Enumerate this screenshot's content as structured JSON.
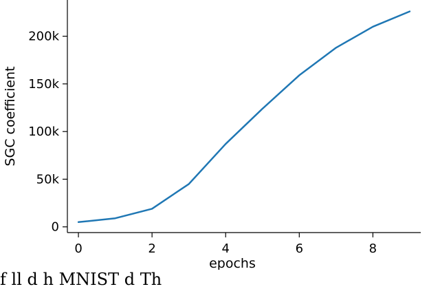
{
  "chart_data": {
    "type": "line",
    "title": "",
    "xlabel": "epochs",
    "ylabel": "SGC coefficient",
    "x": [
      0,
      1,
      2,
      3,
      4,
      5,
      6,
      7,
      8,
      9
    ],
    "series": [
      {
        "values": [
          5000,
          9000,
          19000,
          45000,
          87000,
          124000,
          159000,
          188000,
          210000,
          226000
        ]
      }
    ],
    "xlim": [
      -0.3,
      9.3
    ],
    "ylim": [
      -6000,
      238000
    ],
    "xticks": [
      0,
      2,
      4,
      6,
      8
    ],
    "xtick_labels": [
      "0",
      "2",
      "4",
      "6",
      "8"
    ],
    "yticks": [
      0,
      50000,
      100000,
      150000,
      200000
    ],
    "ytick_labels": [
      "0",
      "50k",
      "100k",
      "150k",
      "200k"
    ],
    "grid": false,
    "line_color": "#1f77b4"
  },
  "caption": "f ll d h MNIST d Th"
}
